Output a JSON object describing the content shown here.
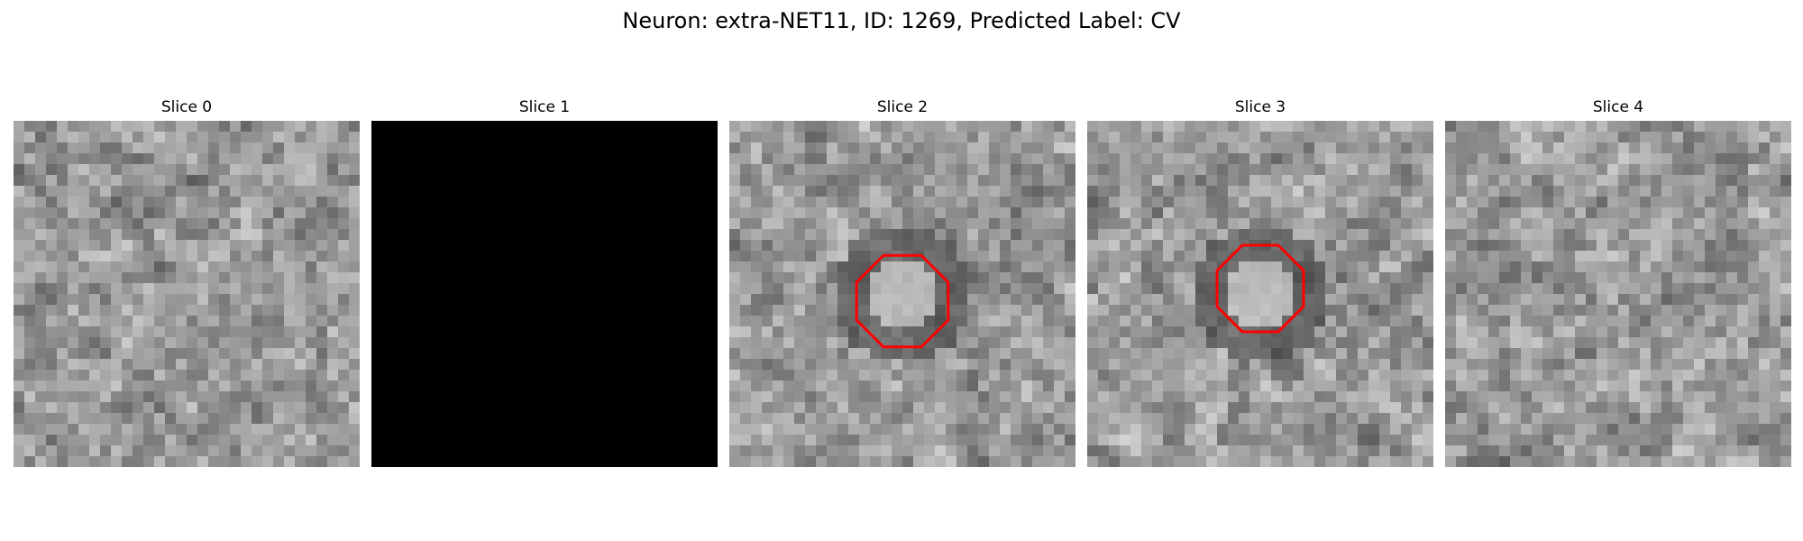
{
  "title": "Neuron: extra-NET11, ID: 1269, Predicted Label: CV",
  "colormap": "gray",
  "contour_color": "#ff0000",
  "panels": [
    {
      "label": "Slice 0",
      "kind": "texture",
      "seed": 11,
      "ring": 0,
      "contour": false
    },
    {
      "label": "Slice 1",
      "kind": "black",
      "seed": 0,
      "ring": 0,
      "contour": false
    },
    {
      "label": "Slice 2",
      "kind": "texture",
      "seed": 23,
      "ring": 1,
      "contour": true
    },
    {
      "label": "Slice 3",
      "kind": "texture",
      "seed": 37,
      "ring": 1,
      "contour": true
    },
    {
      "label": "Slice 4",
      "kind": "texture",
      "seed": 51,
      "ring": 0,
      "contour": false
    }
  ]
}
